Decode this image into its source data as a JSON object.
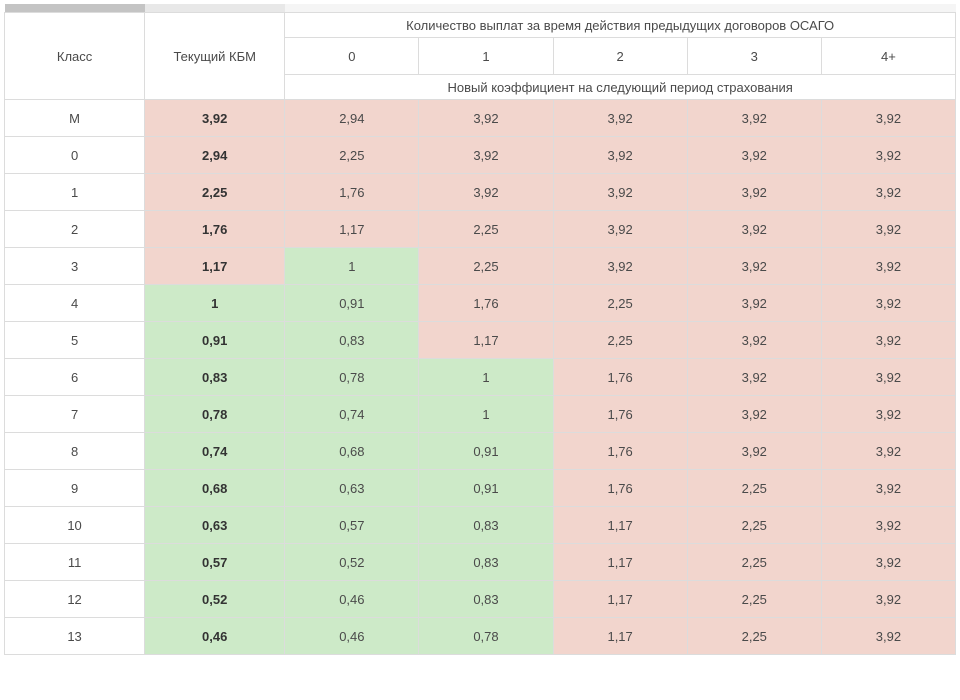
{
  "colors": {
    "green": "#cdeac8",
    "red": "#f2d5cd",
    "white": "#ffffff",
    "border": "#dcdcdc",
    "text": "#4a4a4a",
    "bold": "#333333"
  },
  "header": {
    "class_label": "Класс",
    "kbm_label": "Текущий КБМ",
    "payouts_label": "Количество выплат за время действия предыдущих договоров ОСАГО",
    "payout_cols": [
      "0",
      "1",
      "2",
      "3",
      "4+"
    ],
    "subheader": "Новый коэффициент на следующий период страхования"
  },
  "rows": [
    {
      "class": "М",
      "kbm": {
        "v": "3,92",
        "c": "red",
        "b": true
      },
      "vals": [
        {
          "v": "2,94",
          "c": "red"
        },
        {
          "v": "3,92",
          "c": "red"
        },
        {
          "v": "3,92",
          "c": "red"
        },
        {
          "v": "3,92",
          "c": "red"
        },
        {
          "v": "3,92",
          "c": "red"
        }
      ]
    },
    {
      "class": "0",
      "kbm": {
        "v": "2,94",
        "c": "red",
        "b": true
      },
      "vals": [
        {
          "v": "2,25",
          "c": "red"
        },
        {
          "v": "3,92",
          "c": "red"
        },
        {
          "v": "3,92",
          "c": "red"
        },
        {
          "v": "3,92",
          "c": "red"
        },
        {
          "v": "3,92",
          "c": "red"
        }
      ]
    },
    {
      "class": "1",
      "kbm": {
        "v": "2,25",
        "c": "red",
        "b": true
      },
      "vals": [
        {
          "v": "1,76",
          "c": "red"
        },
        {
          "v": "3,92",
          "c": "red"
        },
        {
          "v": "3,92",
          "c": "red"
        },
        {
          "v": "3,92",
          "c": "red"
        },
        {
          "v": "3,92",
          "c": "red"
        }
      ]
    },
    {
      "class": "2",
      "kbm": {
        "v": "1,76",
        "c": "red",
        "b": true
      },
      "vals": [
        {
          "v": "1,17",
          "c": "red"
        },
        {
          "v": "2,25",
          "c": "red"
        },
        {
          "v": "3,92",
          "c": "red"
        },
        {
          "v": "3,92",
          "c": "red"
        },
        {
          "v": "3,92",
          "c": "red"
        }
      ]
    },
    {
      "class": "3",
      "kbm": {
        "v": "1,17",
        "c": "red",
        "b": true
      },
      "vals": [
        {
          "v": "1",
          "c": "green"
        },
        {
          "v": "2,25",
          "c": "red"
        },
        {
          "v": "3,92",
          "c": "red"
        },
        {
          "v": "3,92",
          "c": "red"
        },
        {
          "v": "3,92",
          "c": "red"
        }
      ]
    },
    {
      "class": "4",
      "kbm": {
        "v": "1",
        "c": "green",
        "b": true
      },
      "vals": [
        {
          "v": "0,91",
          "c": "green"
        },
        {
          "v": "1,76",
          "c": "red"
        },
        {
          "v": "2,25",
          "c": "red"
        },
        {
          "v": "3,92",
          "c": "red"
        },
        {
          "v": "3,92",
          "c": "red"
        }
      ]
    },
    {
      "class": "5",
      "kbm": {
        "v": "0,91",
        "c": "green",
        "b": true
      },
      "vals": [
        {
          "v": "0,83",
          "c": "green"
        },
        {
          "v": "1,17",
          "c": "red"
        },
        {
          "v": "2,25",
          "c": "red"
        },
        {
          "v": "3,92",
          "c": "red"
        },
        {
          "v": "3,92",
          "c": "red"
        }
      ]
    },
    {
      "class": "6",
      "kbm": {
        "v": "0,83",
        "c": "green",
        "b": true
      },
      "vals": [
        {
          "v": "0,78",
          "c": "green"
        },
        {
          "v": "1",
          "c": "green"
        },
        {
          "v": "1,76",
          "c": "red"
        },
        {
          "v": "3,92",
          "c": "red"
        },
        {
          "v": "3,92",
          "c": "red"
        }
      ]
    },
    {
      "class": "7",
      "kbm": {
        "v": "0,78",
        "c": "green",
        "b": true
      },
      "vals": [
        {
          "v": "0,74",
          "c": "green"
        },
        {
          "v": "1",
          "c": "green"
        },
        {
          "v": "1,76",
          "c": "red"
        },
        {
          "v": "3,92",
          "c": "red"
        },
        {
          "v": "3,92",
          "c": "red"
        }
      ]
    },
    {
      "class": "8",
      "kbm": {
        "v": "0,74",
        "c": "green",
        "b": true
      },
      "vals": [
        {
          "v": "0,68",
          "c": "green"
        },
        {
          "v": "0,91",
          "c": "green"
        },
        {
          "v": "1,76",
          "c": "red"
        },
        {
          "v": "3,92",
          "c": "red"
        },
        {
          "v": "3,92",
          "c": "red"
        }
      ]
    },
    {
      "class": "9",
      "kbm": {
        "v": "0,68",
        "c": "green",
        "b": true
      },
      "vals": [
        {
          "v": "0,63",
          "c": "green"
        },
        {
          "v": "0,91",
          "c": "green"
        },
        {
          "v": "1,76",
          "c": "red"
        },
        {
          "v": "2,25",
          "c": "red"
        },
        {
          "v": "3,92",
          "c": "red"
        }
      ]
    },
    {
      "class": "10",
      "kbm": {
        "v": "0,63",
        "c": "green",
        "b": true
      },
      "vals": [
        {
          "v": "0,57",
          "c": "green"
        },
        {
          "v": "0,83",
          "c": "green"
        },
        {
          "v": "1,17",
          "c": "red"
        },
        {
          "v": "2,25",
          "c": "red"
        },
        {
          "v": "3,92",
          "c": "red"
        }
      ]
    },
    {
      "class": "11",
      "kbm": {
        "v": "0,57",
        "c": "green",
        "b": true
      },
      "vals": [
        {
          "v": "0,52",
          "c": "green"
        },
        {
          "v": "0,83",
          "c": "green"
        },
        {
          "v": "1,17",
          "c": "red"
        },
        {
          "v": "2,25",
          "c": "red"
        },
        {
          "v": "3,92",
          "c": "red"
        }
      ]
    },
    {
      "class": "12",
      "kbm": {
        "v": "0,52",
        "c": "green",
        "b": true
      },
      "vals": [
        {
          "v": "0,46",
          "c": "green"
        },
        {
          "v": "0,83",
          "c": "green"
        },
        {
          "v": "1,17",
          "c": "red"
        },
        {
          "v": "2,25",
          "c": "red"
        },
        {
          "v": "3,92",
          "c": "red"
        }
      ]
    },
    {
      "class": "13",
      "kbm": {
        "v": "0,46",
        "c": "green",
        "b": true
      },
      "vals": [
        {
          "v": "0,46",
          "c": "green"
        },
        {
          "v": "0,78",
          "c": "green"
        },
        {
          "v": "1,17",
          "c": "red"
        },
        {
          "v": "2,25",
          "c": "red"
        },
        {
          "v": "3,92",
          "c": "red"
        }
      ]
    }
  ]
}
